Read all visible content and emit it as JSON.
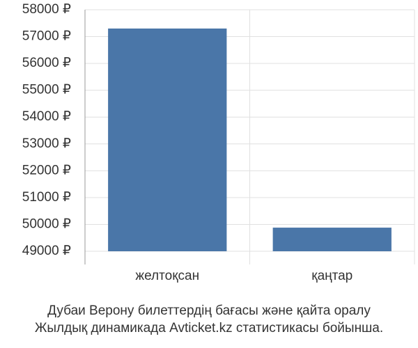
{
  "chart_data": {
    "type": "bar",
    "title": "Дубаи Верону билеттердің бағасы және қайта оралу",
    "subtitle": "Жылдық динамикада Avticket.kz статистикасы бойынша.",
    "categories": [
      "желтоқсан",
      "қаңтар"
    ],
    "values": [
      57300,
      49880
    ],
    "color": "#4a76a8",
    "ylim": [
      49000,
      58000
    ],
    "yticks": [
      {
        "value": 49000,
        "label": "49000 ₽"
      },
      {
        "value": 50000,
        "label": "50000 ₽"
      },
      {
        "value": 51000,
        "label": "51000 ₽"
      },
      {
        "value": 52000,
        "label": "52000 ₽"
      },
      {
        "value": 53000,
        "label": "53000 ₽"
      },
      {
        "value": 54000,
        "label": "54000 ₽"
      },
      {
        "value": 55000,
        "label": "55000 ₽"
      },
      {
        "value": 56000,
        "label": "56000 ₽"
      },
      {
        "value": 57000,
        "label": "57000 ₽"
      },
      {
        "value": 58000,
        "label": "58000 ₽"
      }
    ],
    "grid": true
  }
}
